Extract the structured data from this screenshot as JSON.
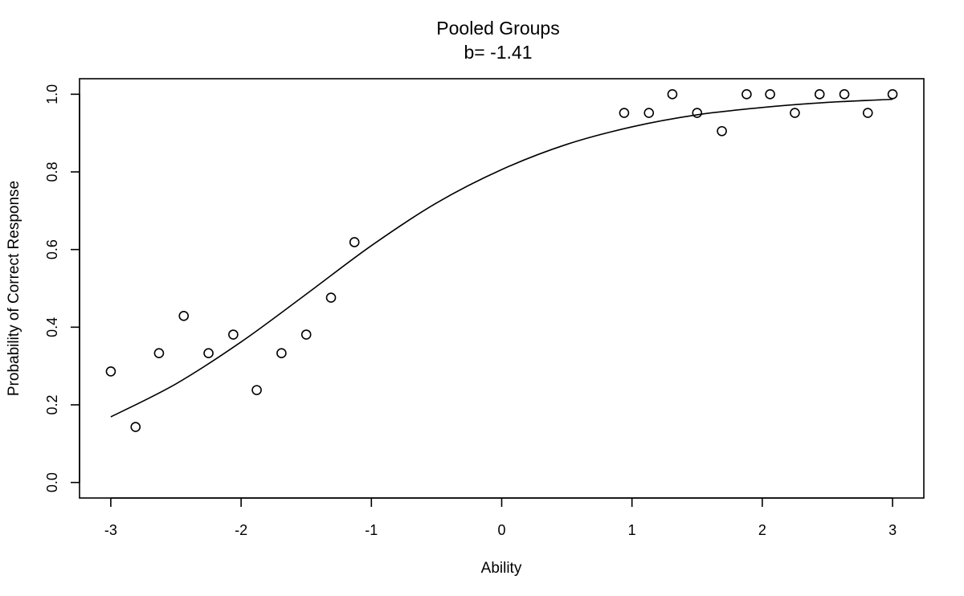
{
  "chart_data": {
    "type": "scatter",
    "title": "Pooled Groups",
    "subtitle": "b= -1.41",
    "xlabel": "Ability",
    "ylabel": "Probability of Correct Response",
    "xlim": [
      -3.24,
      3.24
    ],
    "ylim": [
      -0.04,
      1.04
    ],
    "x_ticks": [
      -3,
      -2,
      -1,
      0,
      1,
      2,
      3
    ],
    "x_tick_labels": [
      "-3",
      "-2",
      "-1",
      "0",
      "1",
      "2",
      "3"
    ],
    "y_ticks": [
      0.0,
      0.2,
      0.4,
      0.6,
      0.8,
      1.0
    ],
    "y_tick_labels": [
      "0.0",
      "0.2",
      "0.4",
      "0.6",
      "0.8",
      "1.0"
    ],
    "grid": false,
    "legend": "none",
    "series": [
      {
        "kind": "points",
        "marker": "open-circle",
        "x": [
          -3.0,
          -2.81,
          -2.63,
          -2.44,
          -2.25,
          -2.06,
          -1.88,
          -1.69,
          -1.5,
          -1.31,
          -1.13,
          0.94,
          1.13,
          1.31,
          1.5,
          1.69,
          1.88,
          2.06,
          2.25,
          2.44,
          2.63,
          2.81,
          3.0
        ],
        "y": [
          0.286,
          0.143,
          0.333,
          0.429,
          0.333,
          0.381,
          0.238,
          0.333,
          0.381,
          0.476,
          0.619,
          0.952,
          0.952,
          1.0,
          0.952,
          0.905,
          1.0,
          1.0,
          0.952,
          1.0,
          1.0,
          0.952,
          1.0
        ]
      },
      {
        "kind": "line",
        "x": [
          -3.0,
          -2.5,
          -2.0,
          -1.5,
          -1.0,
          -0.5,
          0.0,
          0.5,
          1.0,
          1.5,
          2.0,
          2.5,
          3.0
        ],
        "y": [
          0.169,
          0.254,
          0.362,
          0.485,
          0.61,
          0.72,
          0.806,
          0.871,
          0.916,
          0.947,
          0.966,
          0.979,
          0.987
        ]
      }
    ]
  }
}
